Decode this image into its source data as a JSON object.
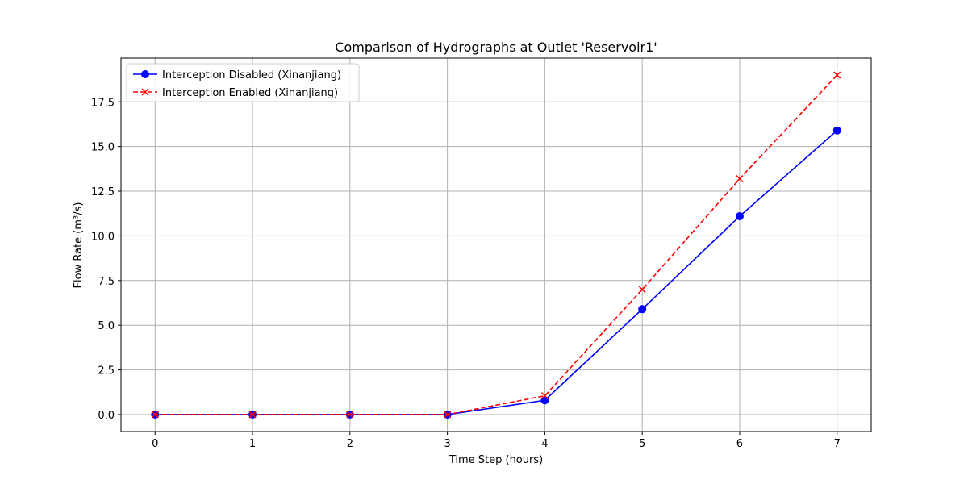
{
  "chart_data": {
    "type": "line",
    "title": "Comparison of Hydrographs at Outlet 'Reservoir1'",
    "xlabel": "Time Step (hours)",
    "ylabel": "Flow Rate (m³/s)",
    "x": [
      0,
      1,
      2,
      3,
      4,
      5,
      6,
      7
    ],
    "xlim": [
      -0.35,
      7.35
    ],
    "ylim": [
      -0.95,
      19.95
    ],
    "xticks": [
      0,
      1,
      2,
      3,
      4,
      5,
      6,
      7
    ],
    "yticks": [
      0,
      2.5,
      5,
      7.5,
      10,
      12.5,
      15,
      17.5
    ],
    "ytick_labels": [
      "0.0",
      "2.5",
      "5.0",
      "7.5",
      "10.0",
      "12.5",
      "15.0",
      "17.5"
    ],
    "grid": true,
    "legend_position": "upper left",
    "series": [
      {
        "name": "Interception Disabled (Xinanjiang)",
        "values": [
          0,
          0,
          0,
          0,
          0.8,
          5.9,
          11.1,
          15.9
        ],
        "color": "#0000ff",
        "line_style": "solid",
        "marker": "circle"
      },
      {
        "name": "Interception Enabled (Xinanjiang)",
        "values": [
          0,
          0,
          0,
          0,
          1.05,
          7.0,
          13.2,
          19.0
        ],
        "color": "#ff0000",
        "line_style": "dashed",
        "marker": "x"
      }
    ]
  }
}
